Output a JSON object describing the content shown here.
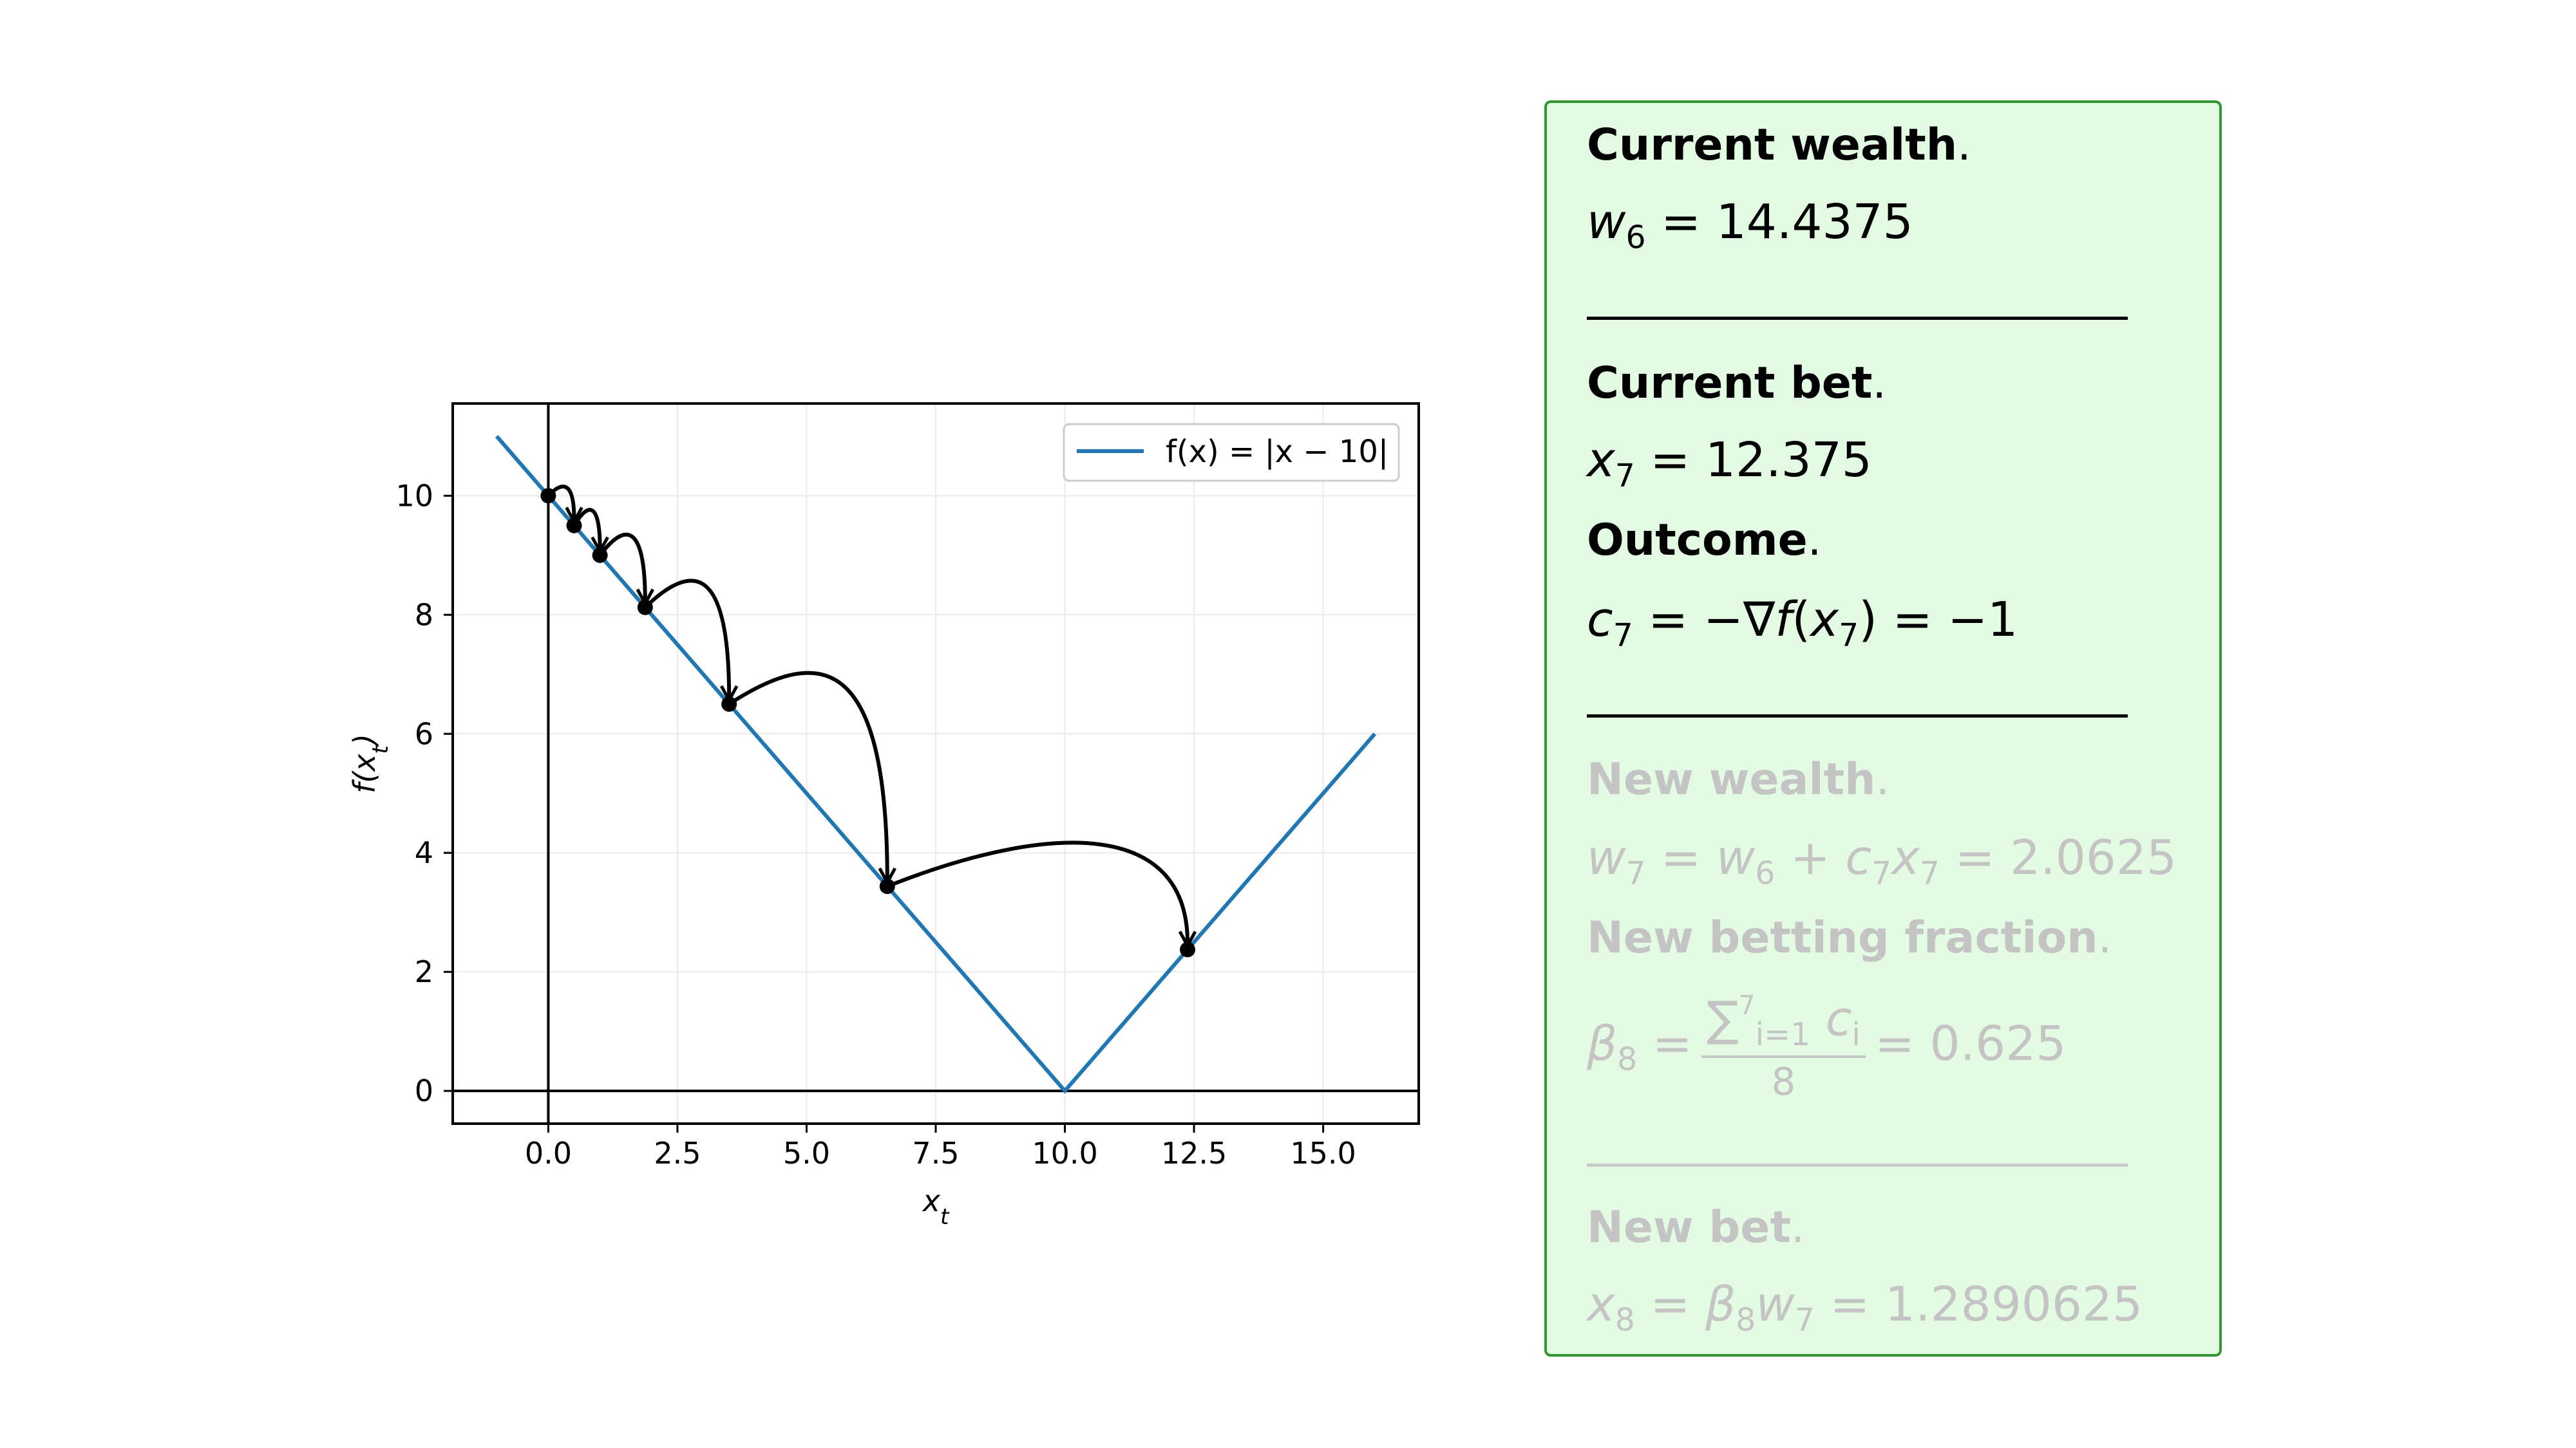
{
  "chart_data": {
    "type": "line",
    "xlabel": "x_t",
    "ylabel": "f(x_t)",
    "xlim": [
      -1.85,
      16.85
    ],
    "ylim": [
      -0.55,
      11.55
    ],
    "xticks": [
      0,
      2.5,
      5,
      7.5,
      10,
      12.5,
      15
    ],
    "xtick_labels": [
      "0.0",
      "2.5",
      "5.0",
      "7.5",
      "10.0",
      "12.5",
      "15.0"
    ],
    "yticks": [
      0,
      2,
      4,
      6,
      8,
      10
    ],
    "ytick_labels": [
      "0",
      "2",
      "4",
      "6",
      "8",
      "10"
    ],
    "grid": true,
    "legend": {
      "position": "top-right",
      "entries": [
        "f(x) = |x − 10|"
      ]
    },
    "series": [
      {
        "name": "f(x) = |x − 10|",
        "color": "#1f77b4",
        "x": [
          -1,
          10,
          16
        ],
        "y": [
          11,
          0,
          6
        ]
      }
    ],
    "iterates": {
      "x": [
        0,
        0.5,
        1,
        1.875,
        3.5,
        6.5625,
        12.375
      ],
      "y": [
        10,
        9.5,
        9,
        8.125,
        6.5,
        3.4375,
        2.375
      ]
    },
    "arc_heights": [
      0.25,
      0.4,
      0.55,
      0.75,
      0.95,
      1.1
    ]
  },
  "panel": {
    "current_wealth": {
      "heading": "Current wealth",
      "var": "w",
      "sub": "6",
      "eq": "=",
      "value": "14.4375"
    },
    "current_bet": {
      "heading": "Current bet",
      "var": "x",
      "sub": "7",
      "eq": "=",
      "value": "12.375"
    },
    "outcome": {
      "heading": "Outcome",
      "var": "c",
      "sub": "7",
      "eq1": "=",
      "minus": "−∇",
      "f": "f",
      "lparen": "(",
      "arg_var": "x",
      "arg_sub": "7",
      "rparen": ")",
      "eq2": "=",
      "value": "−1"
    },
    "new_wealth": {
      "heading": "New wealth",
      "lhs_var": "w",
      "lhs_sub": "7",
      "eq1": "=",
      "t1_var": "w",
      "t1_sub": "6",
      "plus": "+",
      "t2_var": "c",
      "t2_sub": "7",
      "t3_var": "x",
      "t3_sub": "7",
      "eq2": "=",
      "value": "2.0625"
    },
    "new_fraction": {
      "heading": "New betting fraction",
      "var": "β",
      "sub": "8",
      "eq1": "=",
      "sum": "∑",
      "sum_sup": "7",
      "sum_sub": "i=1",
      "term_var": "c",
      "term_sub": "i",
      "den": "8",
      "eq2": "=",
      "value": "0.625"
    },
    "new_bet": {
      "heading": "New bet",
      "var": "x",
      "sub": "8",
      "eq1": "=",
      "t1_var": "β",
      "t1_sub": "8",
      "t2_var": "w",
      "t2_sub": "7",
      "eq2": "=",
      "value": "1.2890625"
    },
    "period": "."
  },
  "colors": {
    "line": "#1f77b4",
    "panel_bg": "#e2fbe2",
    "panel_border": "#2e9a2e",
    "faded_text": "#c4c4c4"
  }
}
